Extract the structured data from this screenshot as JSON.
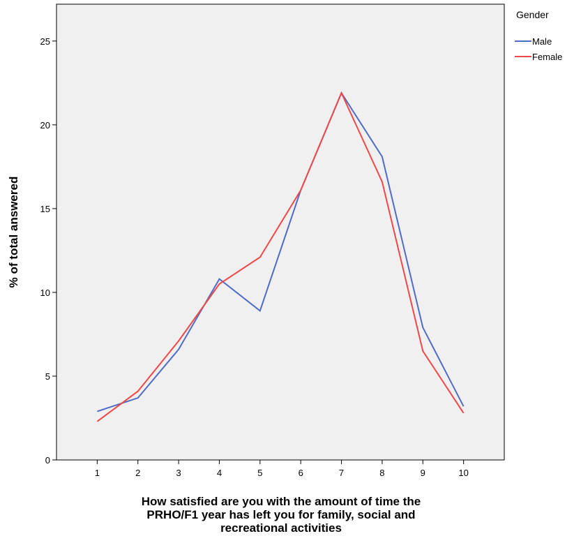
{
  "chart_data": {
    "type": "line",
    "title": "",
    "xlabel_lines": [
      "How satisfied are you with the amount of time the",
      "PRHO/F1 year has left you for family, social and",
      "recreational activities"
    ],
    "ylabel": "% of total answered",
    "x": [
      1,
      2,
      3,
      4,
      5,
      6,
      7,
      8,
      9,
      10
    ],
    "x_ticks": [
      "1",
      "2",
      "3",
      "4",
      "5",
      "6",
      "7",
      "8",
      "9",
      "10"
    ],
    "xlim": [
      0,
      11
    ],
    "ylim": [
      0,
      27.2
    ],
    "y_ticks": [
      0,
      5,
      10,
      15,
      20,
      25
    ],
    "legend_title": "Gender",
    "legend_position": "right",
    "plot_background": "#f0f0f0",
    "series": [
      {
        "name": "Male",
        "color": "#4f6bc8",
        "values": [
          2.9,
          3.7,
          6.6,
          10.8,
          8.9,
          16.1,
          21.9,
          18.1,
          7.9,
          3.2
        ]
      },
      {
        "name": "Female",
        "color": "#f04848",
        "values": [
          2.3,
          4.1,
          7.1,
          10.5,
          12.1,
          16.1,
          21.9,
          16.6,
          6.5,
          2.8
        ]
      }
    ]
  }
}
